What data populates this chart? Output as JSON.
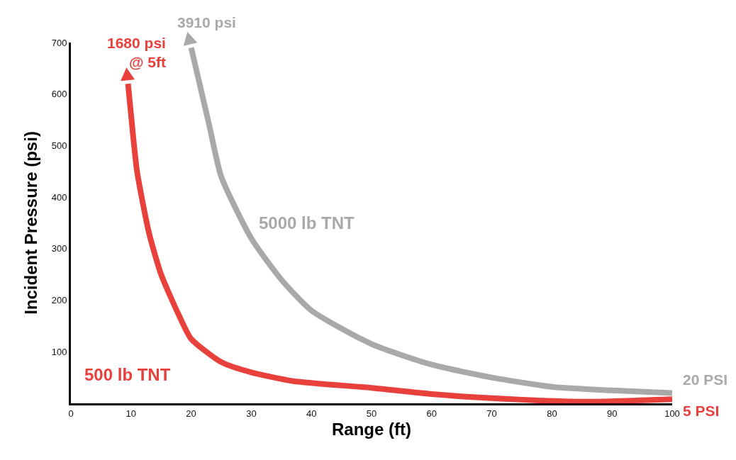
{
  "chart_data": {
    "type": "line",
    "xlabel": "Range (ft)",
    "ylabel": "Incident Pressure (psi)",
    "xlim": [
      0,
      100
    ],
    "ylim": [
      0,
      700
    ],
    "xticks": [
      0,
      10,
      20,
      30,
      40,
      50,
      60,
      70,
      80,
      90,
      100
    ],
    "yticks": [
      100,
      200,
      300,
      400,
      500,
      600,
      700
    ],
    "grid": false,
    "legend": false,
    "line_style": "solid",
    "series": [
      {
        "name": "500 lb TNT",
        "color": "#e8413c",
        "x": [
          9.5,
          10,
          11,
          13,
          15,
          18,
          20,
          25,
          30,
          37,
          50,
          60,
          70,
          85,
          100
        ],
        "values": [
          620,
          560,
          450,
          330,
          250,
          170,
          125,
          80,
          60,
          43,
          30,
          18,
          10,
          3,
          8
        ]
      },
      {
        "name": "5000 lb TNT",
        "color": "#a9a9a9",
        "x": [
          20,
          21,
          23,
          25,
          30,
          35,
          40,
          50,
          60,
          70,
          80,
          90,
          100
        ],
        "values": [
          690,
          640,
          540,
          440,
          320,
          240,
          180,
          115,
          75,
          50,
          32,
          25,
          20
        ]
      }
    ],
    "annotations": [
      "1680 psi\n@ 5ft",
      "3910 psi",
      "20 PSI",
      "5 PSI"
    ]
  }
}
